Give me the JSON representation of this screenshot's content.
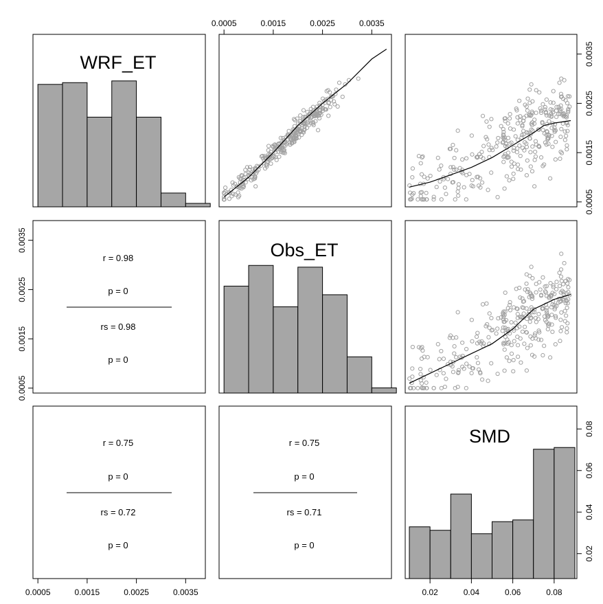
{
  "chart_data": {
    "type": "scatter-matrix",
    "variables": [
      "WRF_ET",
      "Obs_ET",
      "SMD"
    ],
    "axes": {
      "WRF_ET": {
        "range": [
          0.0004,
          0.0039
        ],
        "ticks": [
          0.0005,
          0.0015,
          0.0025,
          0.0035
        ],
        "tick_labels": [
          "0.0005",
          "0.0015",
          "0.0025",
          "0.0035"
        ]
      },
      "Obs_ET": {
        "range": [
          0.0004,
          0.0039
        ],
        "ticks": [
          0.0005,
          0.0015,
          0.0025,
          0.0035
        ],
        "tick_labels": [
          "0.0005",
          "0.0015",
          "0.0025",
          "0.0035"
        ]
      },
      "SMD": {
        "range": [
          0.008,
          0.091
        ],
        "ticks": [
          0.02,
          0.04,
          0.06,
          0.08
        ],
        "tick_labels": [
          "0.02",
          "0.04",
          "0.06",
          "0.08"
        ]
      }
    },
    "histograms": {
      "WRF_ET": {
        "bins": [
          0.0005,
          0.001,
          0.0015,
          0.002,
          0.0025,
          0.003,
          0.0035,
          0.004
        ],
        "relative_heights": [
          0.71,
          0.72,
          0.52,
          0.73,
          0.52,
          0.08,
          0.02
        ]
      },
      "Obs_ET": {
        "bins": [
          0.0005,
          0.001,
          0.0015,
          0.002,
          0.0025,
          0.003,
          0.0035,
          0.004
        ],
        "relative_heights": [
          0.62,
          0.74,
          0.5,
          0.73,
          0.57,
          0.21,
          0.03
        ]
      },
      "SMD": {
        "bins": [
          0.01,
          0.02,
          0.03,
          0.04,
          0.05,
          0.06,
          0.07,
          0.08,
          0.09
        ],
        "relative_heights": [
          0.3,
          0.28,
          0.49,
          0.26,
          0.33,
          0.34,
          0.75,
          0.76
        ]
      }
    },
    "smooth_lines": {
      "WRF_ET_vs_Obs_ET": {
        "x": [
          0.0005,
          0.001,
          0.0015,
          0.002,
          0.0025,
          0.003,
          0.0035,
          0.0038
        ],
        "y": [
          0.0006,
          0.001,
          0.0015,
          0.00205,
          0.0025,
          0.0029,
          0.0034,
          0.0036
        ]
      },
      "SMD_vs_WRF_ET": {
        "x": [
          0.01,
          0.02,
          0.03,
          0.04,
          0.05,
          0.06,
          0.07,
          0.075,
          0.08,
          0.088
        ],
        "y": [
          0.0008,
          0.0009,
          0.00105,
          0.0012,
          0.0014,
          0.00165,
          0.0019,
          0.00205,
          0.0021,
          0.00215
        ]
      },
      "SMD_vs_Obs_ET": {
        "x": [
          0.01,
          0.02,
          0.03,
          0.04,
          0.05,
          0.06,
          0.07,
          0.075,
          0.08,
          0.088
        ],
        "y": [
          0.0006,
          0.0008,
          0.001,
          0.0012,
          0.0014,
          0.0017,
          0.0021,
          0.0022,
          0.0023,
          0.0024
        ]
      }
    },
    "correlations": [
      {
        "pair": [
          "WRF_ET",
          "Obs_ET"
        ],
        "r": "r = 0.98",
        "p_r": "p = 0",
        "rs": "rs = 0.98",
        "p_rs": "p = 0"
      },
      {
        "pair": [
          "WRF_ET",
          "SMD"
        ],
        "r": "r = 0.75",
        "p_r": "p = 0",
        "rs": "rs = 0.72",
        "p_rs": "p = 0"
      },
      {
        "pair": [
          "Obs_ET",
          "SMD"
        ],
        "r": "r = 0.75",
        "p_r": "p = 0",
        "rs": "rs = 0.71",
        "p_rs": "p = 0"
      }
    ],
    "n_points": 330,
    "colors": {
      "bar_fill": "#a6a6a6",
      "points": "#a0a0a0",
      "line": "#000000"
    }
  }
}
